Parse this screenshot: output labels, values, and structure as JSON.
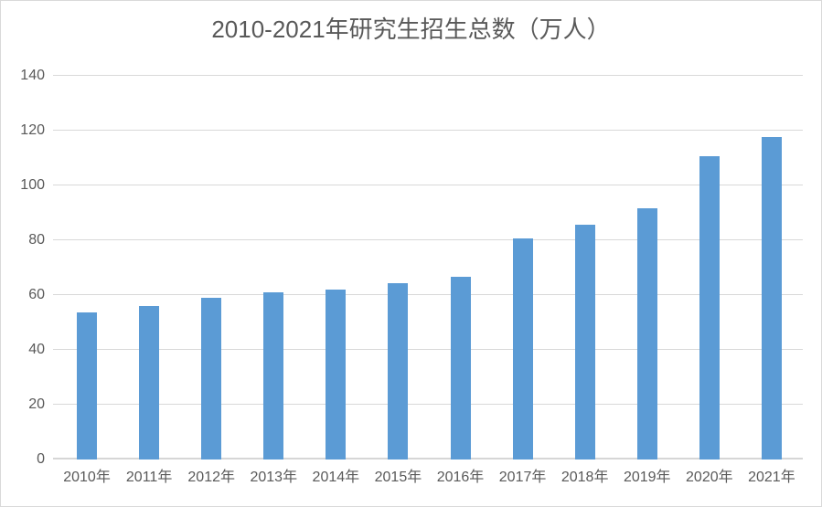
{
  "chart_data": {
    "type": "bar",
    "title": "2010-2021年研究生招生总数（万人）",
    "categories": [
      "2010年",
      "2011年",
      "2012年",
      "2013年",
      "2014年",
      "2015年",
      "2016年",
      "2017年",
      "2018年",
      "2019年",
      "2020年",
      "2021年"
    ],
    "values": [
      53.8,
      56.0,
      59.0,
      61.1,
      62.1,
      64.5,
      66.7,
      80.6,
      85.8,
      91.7,
      110.7,
      117.7
    ],
    "xlabel": "",
    "ylabel": "",
    "ylim": [
      0,
      140
    ],
    "yticks": [
      0,
      20,
      40,
      60,
      80,
      100,
      120,
      140
    ],
    "grid": true,
    "legend": false,
    "colors": {
      "bar": "#5B9BD5",
      "gridline": "#D9D9D9",
      "axis_line": "#D6D6D6",
      "tick_label": "#595959",
      "title": "#595959",
      "chart_border": "#D9D9D9",
      "background": "#FFFFFF"
    }
  }
}
